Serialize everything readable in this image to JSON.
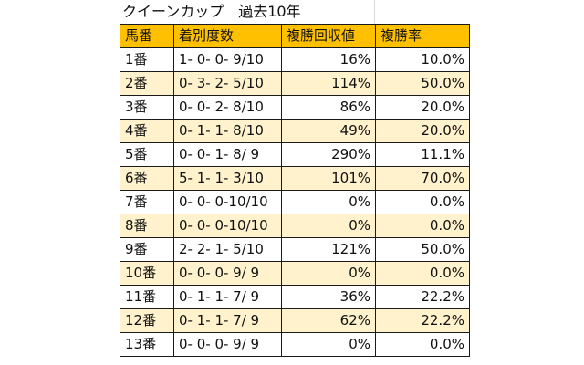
{
  "title": "クイーンカップ　過去10年",
  "colors": {
    "header_bg": "#ffc000",
    "alt_row_bg": "#fff2cc",
    "border": "#1a1a1a"
  },
  "table": {
    "headers": [
      "馬番",
      "着別度数",
      "複勝回収値",
      "複勝率"
    ],
    "rows": [
      [
        "1番",
        "1- 0- 0- 9/10",
        "16%",
        "10.0%"
      ],
      [
        "2番",
        "0- 3- 2- 5/10",
        "114%",
        "50.0%"
      ],
      [
        "3番",
        "0- 0- 2- 8/10",
        "86%",
        "20.0%"
      ],
      [
        "4番",
        "0- 1- 1- 8/10",
        "49%",
        "20.0%"
      ],
      [
        "5番",
        "0- 0- 1- 8/ 9",
        "290%",
        "11.1%"
      ],
      [
        "6番",
        "5- 1- 1- 3/10",
        "101%",
        "70.0%"
      ],
      [
        "7番",
        "0- 0- 0-10/10",
        "0%",
        "0.0%"
      ],
      [
        "8番",
        "0- 0- 0-10/10",
        "0%",
        "0.0%"
      ],
      [
        "9番",
        "2- 2- 1- 5/10",
        "121%",
        "50.0%"
      ],
      [
        "10番",
        "0- 0- 0- 9/ 9",
        "0%",
        "0.0%"
      ],
      [
        "11番",
        "0- 1- 1- 7/ 9",
        "36%",
        "22.2%"
      ],
      [
        "12番",
        "0- 1- 1- 7/ 9",
        "62%",
        "22.2%"
      ],
      [
        "13番",
        "0- 0- 0- 9/ 9",
        "0%",
        "0.0%"
      ]
    ]
  }
}
